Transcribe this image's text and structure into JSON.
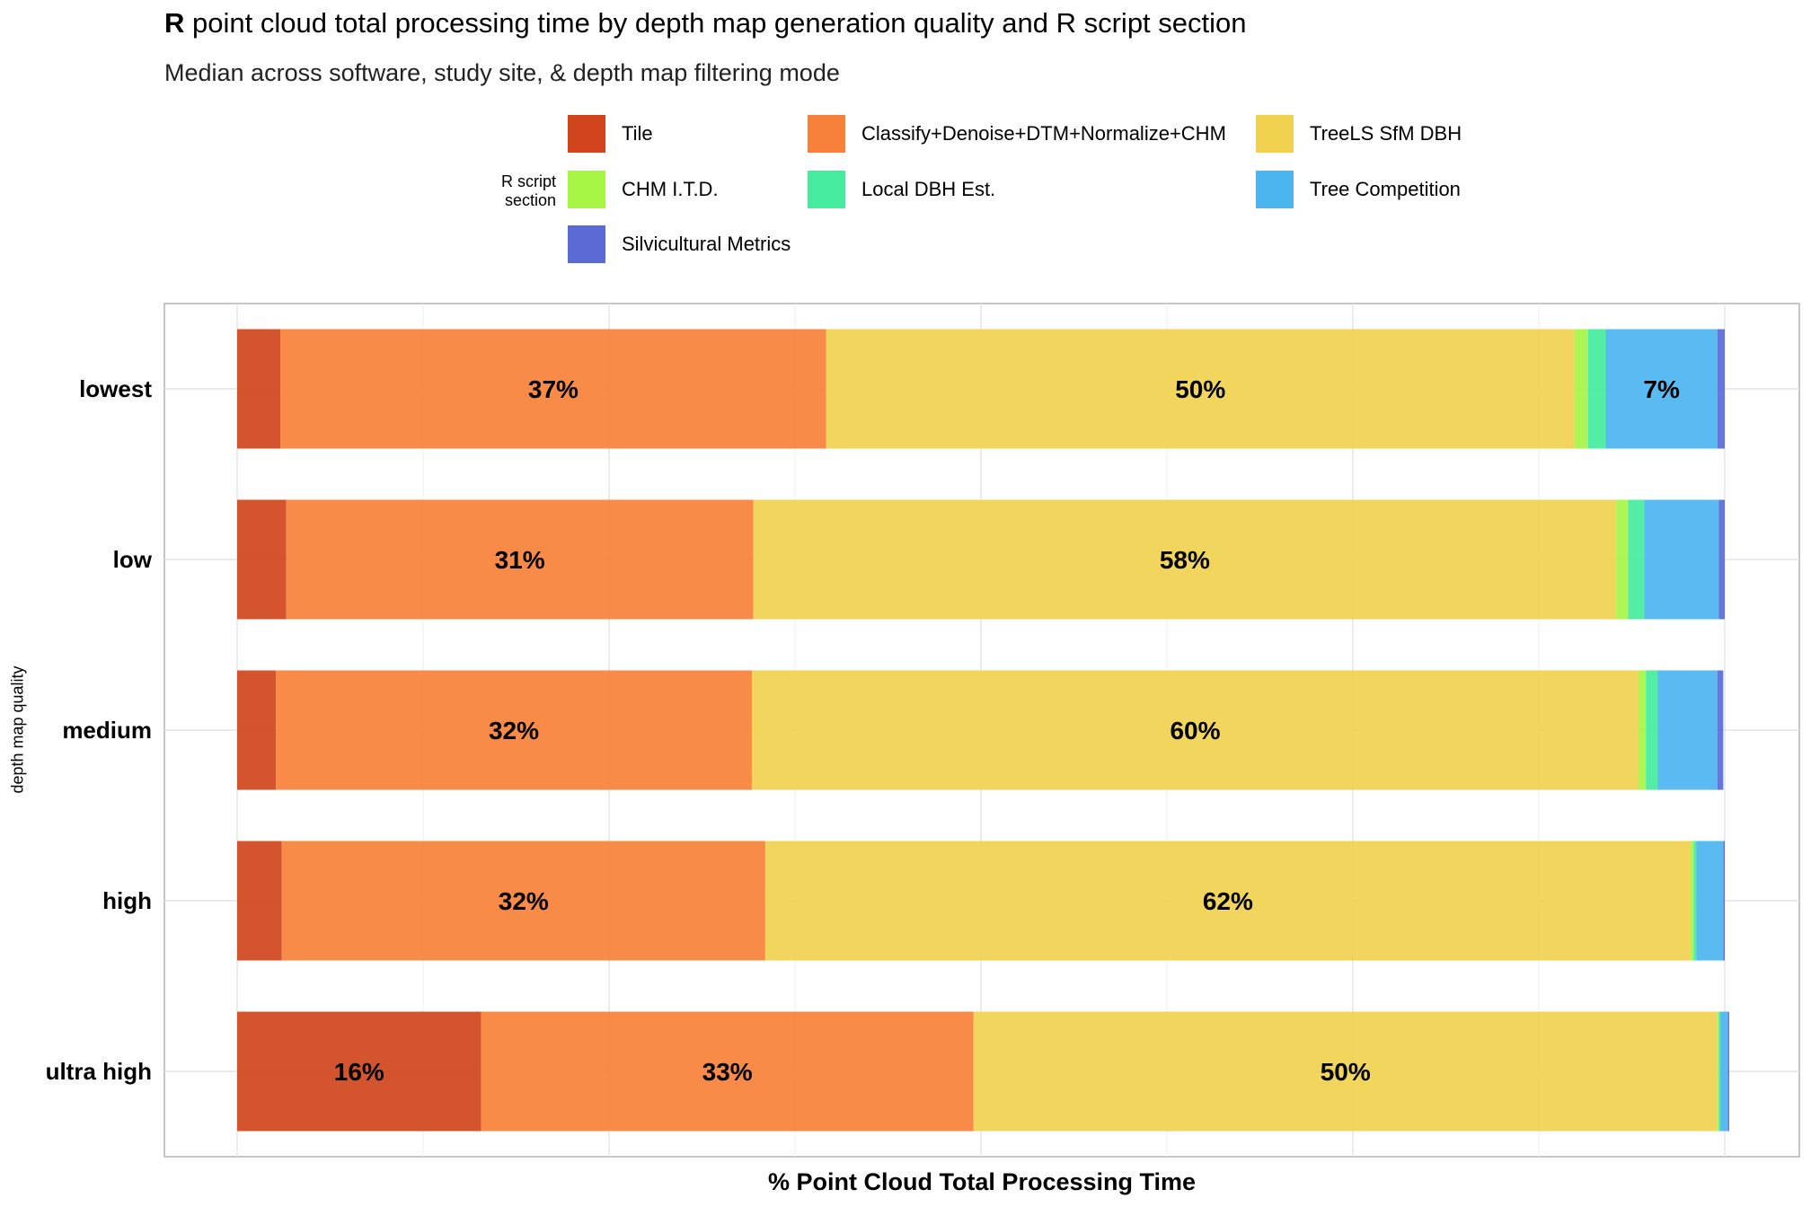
{
  "title": {
    "bold": "R",
    "rest": " point cloud total processing time by depth map generation quality and R script section"
  },
  "subtitle": "Median across software, study site, & depth map filtering mode",
  "legend": {
    "title_line1": "R script",
    "title_line2": "section",
    "position": "top"
  },
  "colors": {
    "Tile": "#d0451c",
    "Classify+Denoise+DTM+Normalize+CHM": "#f8813a",
    "TreeLS SfM DBH": "#f0d14e",
    "CHM I.T.D.": "#a7f544",
    "Local DBH Est.": "#45ec9d",
    "Tree Competition": "#4bb5f0",
    "Silvicultural Metrics": "#5a6bd6"
  },
  "chart_data": {
    "type": "bar",
    "orientation": "horizontal",
    "stacked": true,
    "xlabel": "% Point Cloud Total Processing Time",
    "ylabel": "depth map quality",
    "xlim": [
      0,
      1
    ],
    "x_tick_labels_shown": false,
    "grid": true,
    "categories": [
      "lowest",
      "low",
      "medium",
      "high",
      "ultra high"
    ],
    "series": [
      {
        "name": "Tile",
        "values": [
          0.029,
          0.033,
          0.026,
          0.03,
          0.164
        ]
      },
      {
        "name": "Classify+Denoise+DTM+Normalize+CHM",
        "values": [
          0.367,
          0.314,
          0.32,
          0.325,
          0.331
        ]
      },
      {
        "name": "TreeLS SfM DBH",
        "values": [
          0.503,
          0.58,
          0.596,
          0.622,
          0.5
        ]
      },
      {
        "name": "CHM I.T.D.",
        "values": [
          0.009,
          0.008,
          0.005,
          0.002,
          0.001
        ]
      },
      {
        "name": "Local DBH Est.",
        "values": [
          0.012,
          0.011,
          0.008,
          0.002,
          0.001
        ]
      },
      {
        "name": "Tree Competition",
        "values": [
          0.075,
          0.05,
          0.04,
          0.018,
          0.005
        ]
      },
      {
        "name": "Silvicultural Metrics",
        "values": [
          0.005,
          0.004,
          0.004,
          0.001,
          0.001
        ]
      }
    ],
    "data_labels": [
      {
        "category": "lowest",
        "series": "Classify+Denoise+DTM+Normalize+CHM",
        "text": "37%"
      },
      {
        "category": "lowest",
        "series": "TreeLS SfM DBH",
        "text": "50%"
      },
      {
        "category": "lowest",
        "series": "Tree Competition",
        "text": "7%"
      },
      {
        "category": "low",
        "series": "Classify+Denoise+DTM+Normalize+CHM",
        "text": "31%"
      },
      {
        "category": "low",
        "series": "TreeLS SfM DBH",
        "text": "58%"
      },
      {
        "category": "medium",
        "series": "Classify+Denoise+DTM+Normalize+CHM",
        "text": "32%"
      },
      {
        "category": "medium",
        "series": "TreeLS SfM DBH",
        "text": "60%"
      },
      {
        "category": "high",
        "series": "Classify+Denoise+DTM+Normalize+CHM",
        "text": "32%"
      },
      {
        "category": "high",
        "series": "TreeLS SfM DBH",
        "text": "62%"
      },
      {
        "category": "ultra high",
        "series": "Tile",
        "text": "16%"
      },
      {
        "category": "ultra high",
        "series": "Classify+Denoise+DTM+Normalize+CHM",
        "text": "33%"
      },
      {
        "category": "ultra high",
        "series": "TreeLS SfM DBH",
        "text": "50%"
      }
    ]
  }
}
